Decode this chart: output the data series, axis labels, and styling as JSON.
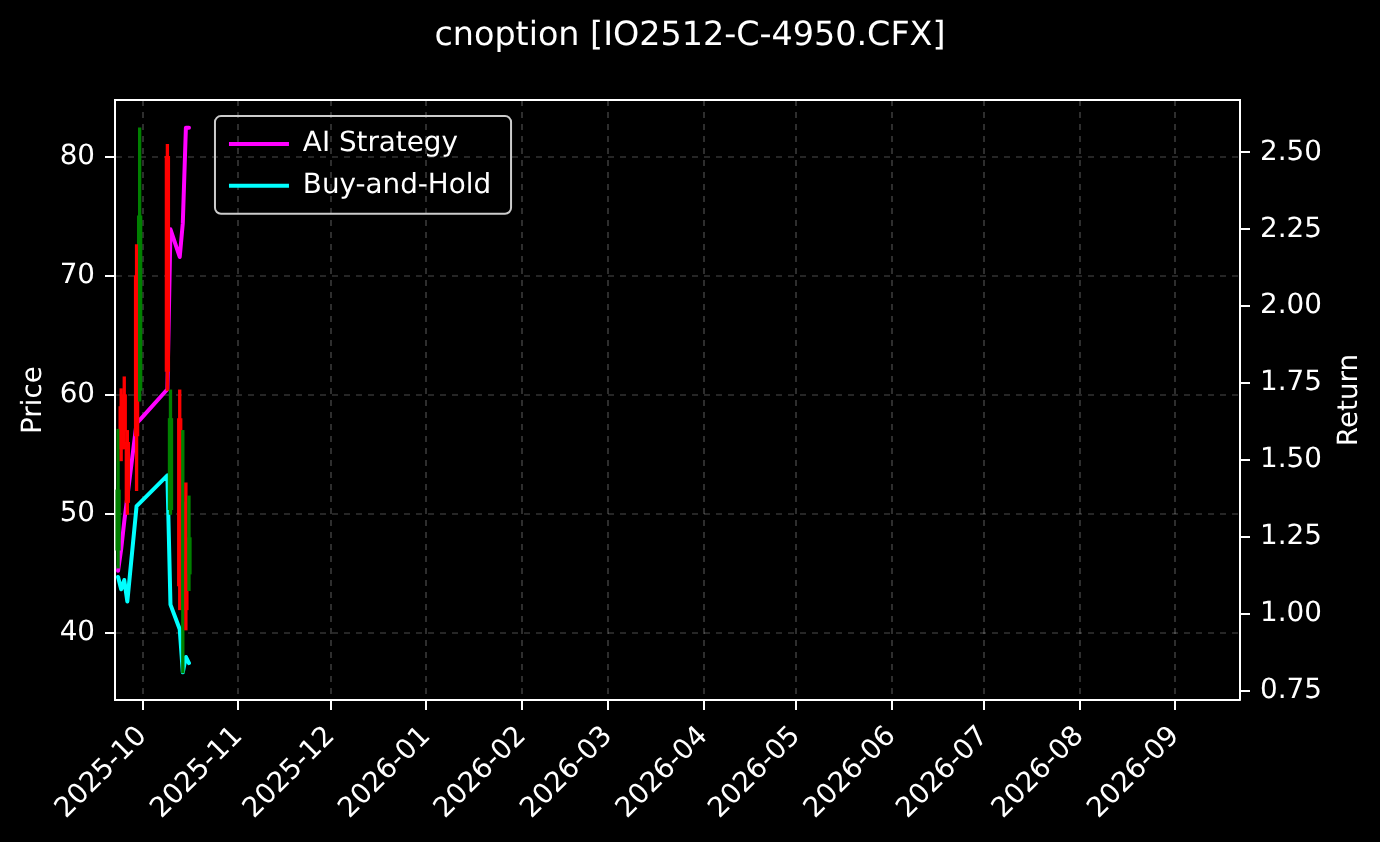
{
  "chart_data": {
    "type": "candlestick",
    "title": "cnoption [IO2512-C-4950.CFX]",
    "ylabel": "Price",
    "y2label": "Return",
    "x": [
      "2025-09-23",
      "2025-09-24",
      "2025-09-25",
      "2025-09-26",
      "2025-09-29",
      "2025-09-30",
      "2025-10-09",
      "2025-10-10",
      "2025-10-13",
      "2025-10-14",
      "2025-10-15",
      "2025-10-16"
    ],
    "ohlc": [
      [
        47,
        57.1,
        45.5,
        52
      ],
      [
        59,
        60.5,
        54.5,
        55.5
      ],
      [
        60,
        61.5,
        55.5,
        57
      ],
      [
        56,
        57,
        50,
        51
      ],
      [
        70,
        72.6,
        52,
        56.6
      ],
      [
        60.4,
        82.4,
        59.5,
        75
      ],
      [
        80,
        81,
        60.4,
        62
      ],
      [
        50.4,
        60.4,
        50,
        58
      ],
      [
        58,
        60.4,
        42,
        44
      ],
      [
        42,
        57,
        36.7,
        51
      ],
      [
        46,
        52.6,
        40.3,
        42
      ],
      [
        45,
        51.5,
        43.6,
        48
      ]
    ],
    "colors": [
      "#008000",
      "#ff0000",
      "#ff0000",
      "#ff0000",
      "#ff0000",
      "#008000",
      "#ff0000",
      "#008000",
      "#ff0000",
      "#008000",
      "#ff0000",
      "#008000"
    ],
    "series": [
      {
        "name": "AI Strategy",
        "type": "line",
        "axis": "y2",
        "color": "#ff00ff",
        "values": [
          1.14,
          1.21,
          1.3,
          1.38,
          1.62,
          1.63,
          1.73,
          2.25,
          2.16,
          2.27,
          2.58,
          2.58
        ]
      },
      {
        "name": "Buy-and-Hold",
        "type": "line",
        "axis": "y2",
        "color": "#00ffff",
        "values": [
          1.12,
          1.08,
          1.11,
          1.04,
          1.35,
          1.36,
          1.45,
          1.03,
          0.95,
          0.81,
          0.86,
          0.84
        ]
      }
    ],
    "xlim": [
      "2025-09-22",
      "2026-09-22"
    ],
    "xticks": [
      "2025-10",
      "2025-11",
      "2025-12",
      "2026-01",
      "2026-02",
      "2026-03",
      "2026-04",
      "2026-05",
      "2026-06",
      "2026-07",
      "2026-08",
      "2026-09"
    ],
    "ylim": [
      34.4,
      84.75
    ],
    "yticks": [
      40,
      50,
      60,
      70,
      80
    ],
    "y2lim": [
      0.72,
      2.67
    ],
    "y2ticks": [
      0.75,
      {
        "value": 1,
        "label": "1.00"
      },
      1.25,
      {
        "value": 1.5,
        "label": "1.50"
      },
      1.75,
      {
        "value": 2,
        "label": "2.00"
      },
      2.25,
      {
        "value": 2.5,
        "label": "2.50"
      }
    ],
    "grid": true,
    "legend": "top left",
    "marker": "none"
  }
}
